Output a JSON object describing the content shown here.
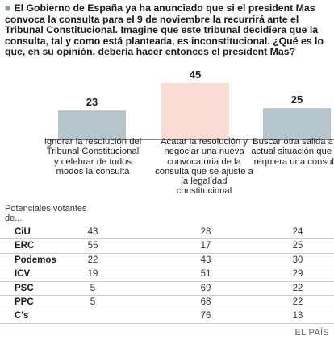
{
  "question": "El Gobierno de España ya ha anunciado que si el president Mas convoca la consulta para el 9 de noviembre la recurrirá ante el Tribunal Constitucional. Imagine que este tribunal decidiera que la consulta, tal y como está planteada, es inconstitucional. ¿Qué es lo que, en su opinión, debería hacer entonces el president Mas?",
  "colors": {
    "bar": "#b6c4cb",
    "bar_highlight": "#f9dcd2",
    "axis": "#888888"
  },
  "chart_data": {
    "type": "bar",
    "categories": [
      "Ignorar la resolución del Tribunal Constitucional y celebrar de todos modos la consulta",
      "Acatar la resolución y negociar una nueva convocatoria de la consulta que se ajuste a la legalidad constitucional",
      "Buscar otra salida a la actual situación que no requiera una consulta"
    ],
    "values": [
      23,
      45,
      25
    ],
    "ylim": [
      0,
      45
    ]
  },
  "table": {
    "header": "Potenciales votantes de...",
    "rows": [
      {
        "party": "CiU",
        "values": [
          "43",
          "28",
          "24"
        ]
      },
      {
        "party": "ERC",
        "values": [
          "55",
          "17",
          "25"
        ]
      },
      {
        "party": "Podemos",
        "values": [
          "22",
          "43",
          "30"
        ]
      },
      {
        "party": "ICV",
        "values": [
          "19",
          "51",
          "29"
        ]
      },
      {
        "party": "PSC",
        "values": [
          "5",
          "69",
          "22"
        ]
      },
      {
        "party": "PPC",
        "values": [
          "5",
          "68",
          "22"
        ]
      },
      {
        "party": "C's",
        "values": [
          "",
          "76",
          "18"
        ]
      }
    ]
  },
  "source": "EL PAÍS"
}
